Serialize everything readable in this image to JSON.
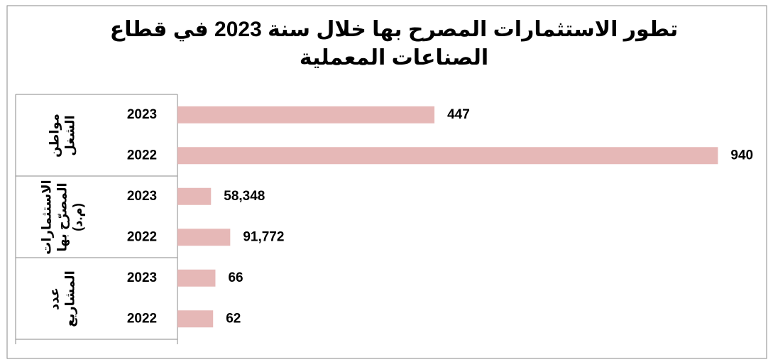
{
  "chart_data": {
    "type": "bar",
    "orientation": "horizontal",
    "title": "تطور الاستثمارات المصرح بها خلال سنة 2023 في قطاع الصناعات المعملية",
    "groups": [
      {
        "name": "مواطن الشغل",
        "categories": [
          "2023",
          "2022"
        ],
        "values": [
          447,
          940
        ]
      },
      {
        "name": "الاستثمارات المصرّح بها (م.د)",
        "categories": [
          "2023",
          "2022"
        ],
        "values": [
          58.348,
          91.772
        ],
        "value_labels": [
          "58,348",
          "91,772"
        ]
      },
      {
        "name": "عدد المشاريع",
        "categories": [
          "2023",
          "2022"
        ],
        "values": [
          66,
          62
        ]
      }
    ],
    "color": "#e6b8b7",
    "xlim": [
      0,
      1000
    ]
  }
}
